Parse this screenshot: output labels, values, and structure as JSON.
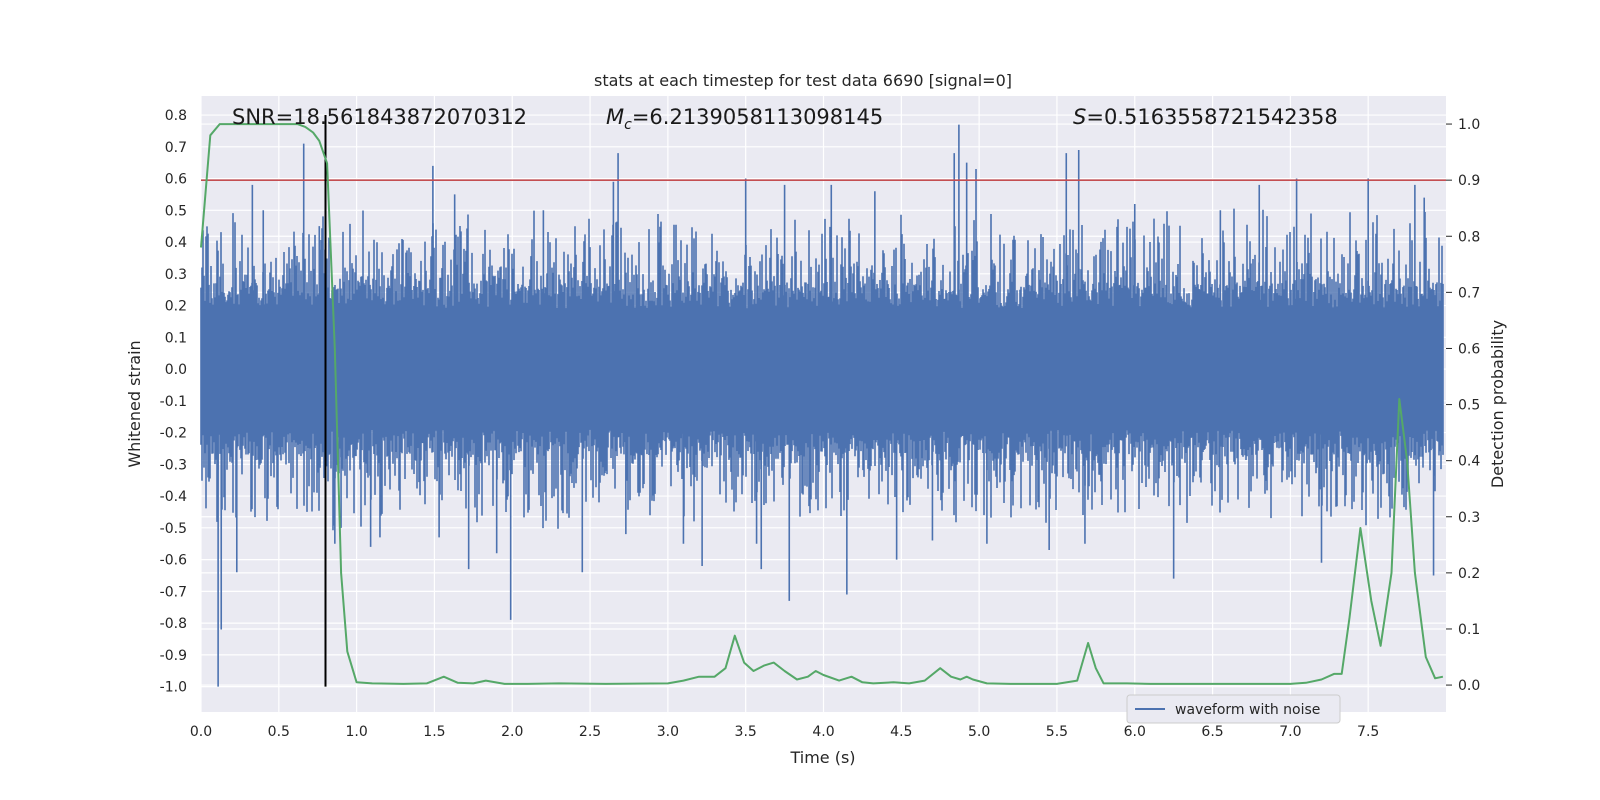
{
  "chart_data": {
    "type": "line",
    "title": "stats at each timestep for test data 6690 [signal=0]",
    "xlabel": "Time (s)",
    "ylabel_left": "Whitened strain",
    "ylabel_right": "Detection probability",
    "xlim": [
      0.0,
      8.0
    ],
    "ylim_left": [
      -1.08,
      0.86
    ],
    "ylim_right": [
      -0.048,
      1.05
    ],
    "x_ticks": [
      "0.0",
      "0.5",
      "1.0",
      "1.5",
      "2.0",
      "2.5",
      "3.0",
      "3.5",
      "4.0",
      "4.5",
      "5.0",
      "5.5",
      "6.0",
      "6.5",
      "7.0",
      "7.5"
    ],
    "y_left_ticks": [
      "0.8",
      "0.7",
      "0.6",
      "0.5",
      "0.4",
      "0.3",
      "0.2",
      "0.1",
      "0.0",
      "-0.1",
      "-0.2",
      "-0.3",
      "-0.4",
      "-0.5",
      "-0.6",
      "-0.7",
      "-0.8",
      "-0.9",
      "-1.0"
    ],
    "y_right_ticks": [
      "1.0",
      "0.9",
      "0.8",
      "0.7",
      "0.6",
      "0.5",
      "0.4",
      "0.3",
      "0.2",
      "0.1",
      "0.0"
    ],
    "grid": true,
    "legend_position": "lower-right",
    "annotations": {
      "snr": "SNR=18.561843872070312",
      "mc_symbol": "M",
      "mc_sub": "c",
      "mc_value": "=6.2139058113098145",
      "s_symbol": "S",
      "s_value": "=0.5163558721542358"
    },
    "threshold_probability": 0.9,
    "vertical_marker_time": 0.8,
    "series": [
      {
        "name": "waveform with noise",
        "axis": "left",
        "color": "#4c72b0",
        "kind": "noise-strain",
        "envelope_typical": 0.3,
        "duration": 7.98,
        "spikes": [
          [
            0.11,
            -1.0
          ],
          [
            0.13,
            -0.82
          ],
          [
            0.23,
            -0.64
          ],
          [
            0.33,
            0.58
          ],
          [
            0.4,
            0.5
          ],
          [
            0.66,
            0.71
          ],
          [
            0.76,
            0.45
          ],
          [
            0.8,
            0.62
          ],
          [
            0.86,
            -0.55
          ],
          [
            0.9,
            -0.5
          ],
          [
            1.09,
            -0.56
          ],
          [
            1.15,
            -0.53
          ],
          [
            1.49,
            0.64
          ],
          [
            1.53,
            -0.53
          ],
          [
            1.63,
            0.55
          ],
          [
            1.72,
            -0.63
          ],
          [
            1.9,
            -0.58
          ],
          [
            1.99,
            -0.79
          ],
          [
            2.2,
            0.5
          ],
          [
            2.45,
            -0.64
          ],
          [
            2.65,
            0.59
          ],
          [
            2.68,
            0.68
          ],
          [
            2.73,
            -0.52
          ],
          [
            3.1,
            -0.55
          ],
          [
            3.22,
            -0.62
          ],
          [
            3.5,
            0.6
          ],
          [
            3.57,
            -0.55
          ],
          [
            3.6,
            -0.63
          ],
          [
            3.75,
            0.58
          ],
          [
            3.78,
            -0.73
          ],
          [
            4.05,
            0.58
          ],
          [
            4.15,
            -0.71
          ],
          [
            4.33,
            0.56
          ],
          [
            4.47,
            -0.6
          ],
          [
            4.7,
            -0.54
          ],
          [
            4.84,
            0.68
          ],
          [
            4.87,
            0.77
          ],
          [
            4.92,
            0.65
          ],
          [
            4.98,
            0.63
          ],
          [
            5.05,
            -0.55
          ],
          [
            5.45,
            -0.57
          ],
          [
            5.56,
            0.68
          ],
          [
            5.64,
            0.69
          ],
          [
            5.68,
            -0.55
          ],
          [
            6.0,
            0.52
          ],
          [
            6.25,
            -0.66
          ],
          [
            6.55,
            0.5
          ],
          [
            6.8,
            0.58
          ],
          [
            7.04,
            0.6
          ],
          [
            7.2,
            -0.61
          ],
          [
            7.5,
            0.6
          ],
          [
            7.8,
            0.58
          ],
          [
            7.86,
            0.54
          ],
          [
            7.92,
            -0.65
          ]
        ]
      },
      {
        "name": "",
        "axis": "right",
        "color": "#55a868",
        "kind": "probability",
        "x": [
          0.0,
          0.06,
          0.12,
          0.25,
          0.5,
          0.62,
          0.67,
          0.72,
          0.76,
          0.81,
          0.86,
          0.9,
          0.94,
          1.0,
          1.1,
          1.3,
          1.45,
          1.56,
          1.65,
          1.75,
          1.83,
          1.95,
          2.1,
          2.3,
          2.6,
          3.0,
          3.1,
          3.2,
          3.3,
          3.37,
          3.43,
          3.49,
          3.55,
          3.62,
          3.68,
          3.75,
          3.83,
          3.9,
          3.95,
          4.0,
          4.1,
          4.18,
          4.25,
          4.32,
          4.45,
          4.55,
          4.65,
          4.75,
          4.82,
          4.88,
          4.92,
          4.96,
          5.05,
          5.2,
          5.5,
          5.63,
          5.7,
          5.75,
          5.8,
          5.95,
          6.1,
          6.5,
          7.0,
          7.1,
          7.2,
          7.28,
          7.33,
          7.38,
          7.45,
          7.52,
          7.58,
          7.65,
          7.7,
          7.75,
          7.8,
          7.87,
          7.93,
          7.98
        ],
        "y": [
          0.78,
          0.98,
          1.0,
          1.0,
          1.0,
          1.0,
          0.995,
          0.985,
          0.97,
          0.93,
          0.6,
          0.2,
          0.06,
          0.005,
          0.003,
          0.002,
          0.003,
          0.015,
          0.004,
          0.003,
          0.008,
          0.002,
          0.002,
          0.003,
          0.002,
          0.003,
          0.008,
          0.015,
          0.015,
          0.03,
          0.088,
          0.04,
          0.025,
          0.035,
          0.04,
          0.025,
          0.01,
          0.015,
          0.025,
          0.018,
          0.008,
          0.015,
          0.005,
          0.003,
          0.005,
          0.003,
          0.008,
          0.03,
          0.015,
          0.01,
          0.015,
          0.01,
          0.003,
          0.002,
          0.002,
          0.008,
          0.075,
          0.03,
          0.003,
          0.003,
          0.002,
          0.002,
          0.002,
          0.004,
          0.01,
          0.02,
          0.02,
          0.12,
          0.28,
          0.15,
          0.07,
          0.2,
          0.51,
          0.4,
          0.2,
          0.05,
          0.012,
          0.015
        ]
      }
    ]
  }
}
